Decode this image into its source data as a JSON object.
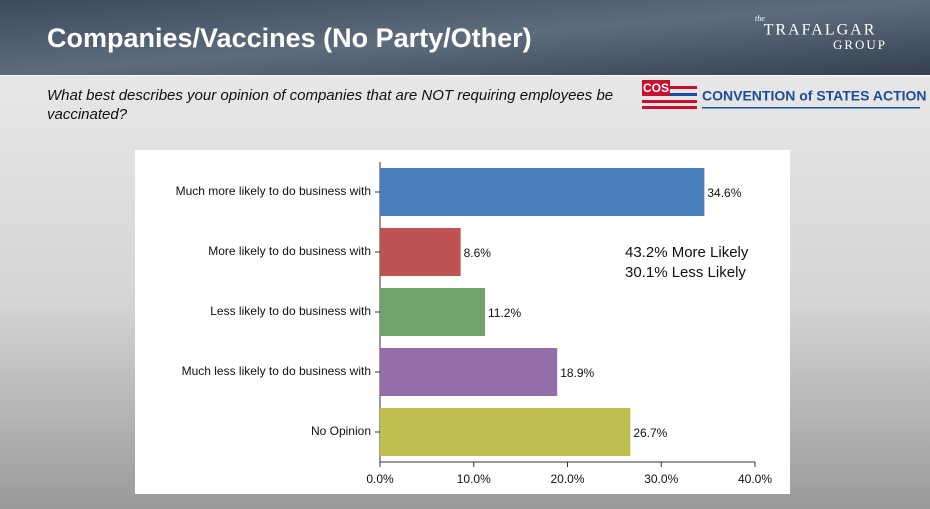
{
  "header": {
    "title": "Companies/Vaccines (No Party/Other)",
    "question": "What best describes your opinion of companies that are NOT requiring employees be vaccinated?",
    "brand_small": "the",
    "brand_main": "TRAFALGAR",
    "brand_sub": "GROUP",
    "sponsor_mark": "COS",
    "sponsor_name": "CONVENTION of STATES ACTION"
  },
  "chart_data": {
    "type": "hbar",
    "categories": [
      "Much more likely to do business with",
      "More likely to do business with",
      "Less likely to do business with",
      "Much less likely to do business with",
      "No Opinion"
    ],
    "values": [
      34.6,
      8.6,
      11.2,
      18.9,
      26.7
    ],
    "value_labels": [
      "34.6%",
      "8.6%",
      "11.2%",
      "18.9%",
      "26.7%"
    ],
    "colors": [
      "#4a7ebf",
      "#bf5353",
      "#6fa36b",
      "#936ea8",
      "#bdbf4f"
    ],
    "xlim": [
      0,
      40
    ],
    "xticks": [
      {
        "value": 0,
        "label": "0.0%"
      },
      {
        "value": 10,
        "label": "10.0%"
      },
      {
        "value": 20,
        "label": "20.0%"
      },
      {
        "value": 30,
        "label": "30.0%"
      },
      {
        "value": 40,
        "label": "40.0%"
      }
    ],
    "annotations": [
      "43.2% More Likely",
      "30.1% Less Likely"
    ]
  }
}
